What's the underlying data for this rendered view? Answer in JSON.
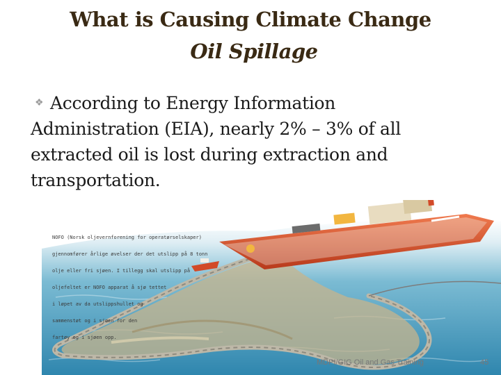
{
  "slide": {
    "title": "What is Causing Climate Change",
    "subtitle": "Oil Spillage",
    "bullet": {
      "first_line": "According to Energy Information",
      "rest": "Administration (EIA), nearly 2% – 3% of all extracted oil is lost during extraction and transportation."
    },
    "illustration": {
      "caption_lines": [
        "NOFO (Norsk oljevernforening for operatørselskaper)",
        "gjennomfører årlige øvelser der det utslipp på 8 tonn",
        "olje eller fri sjøen. I tillegg skal utslipp på",
        "oljefeltet er NOFO apparat å sjø tettet",
        "i løpet av da utslippshullet og",
        "sammenstøt og i sjøen for den",
        "fartøy og i sjøen opp."
      ]
    },
    "footer": "MDPI/GIG Oil and Gas Training",
    "page_number": "45"
  },
  "colors": {
    "title": "#3a2a14",
    "body_text": "#1a1a1a",
    "sea": "#4d9fc0",
    "ship_hull": "#e2562e",
    "oil_slick": "#c7b48c",
    "boom": "#bdb8a8"
  }
}
